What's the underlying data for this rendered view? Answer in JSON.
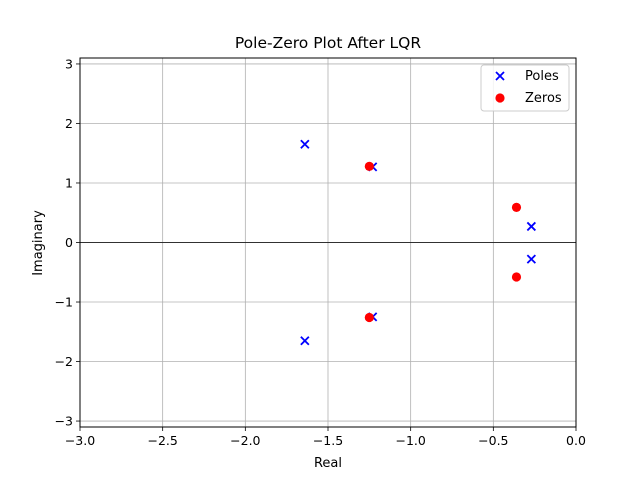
{
  "chart_data": {
    "type": "scatter",
    "title": "Pole-Zero Plot After LQR",
    "xlabel": "Real",
    "ylabel": "Imaginary",
    "xlim": [
      -3.0,
      0.0
    ],
    "ylim": [
      -3.1,
      3.1
    ],
    "grid": true,
    "legend_position": "top-right",
    "x_ticks": [
      -3.0,
      -2.5,
      -2.0,
      -1.5,
      -1.0,
      -0.5,
      0.0
    ],
    "x_tick_labels": [
      "−3.0",
      "−2.5",
      "−2.0",
      "−1.5",
      "−1.0",
      "−0.5",
      "0.0"
    ],
    "y_ticks": [
      -3,
      -2,
      -1,
      0,
      1,
      2,
      3
    ],
    "y_tick_labels": [
      "−3",
      "−2",
      "−1",
      "0",
      "1",
      "2",
      "3"
    ],
    "series": [
      {
        "name": "Poles",
        "marker": "x",
        "color": "#0000ff",
        "points": [
          {
            "x": -1.64,
            "y": 1.65
          },
          {
            "x": -1.64,
            "y": -1.65
          },
          {
            "x": -1.23,
            "y": 1.27
          },
          {
            "x": -1.23,
            "y": -1.25
          },
          {
            "x": -0.27,
            "y": 0.27
          },
          {
            "x": -0.27,
            "y": -0.28
          }
        ]
      },
      {
        "name": "Zeros",
        "marker": "o",
        "color": "#ff0000",
        "points": [
          {
            "x": -1.25,
            "y": 1.28
          },
          {
            "x": -1.25,
            "y": -1.26
          },
          {
            "x": -0.36,
            "y": 0.59
          },
          {
            "x": -0.36,
            "y": -0.58
          }
        ]
      }
    ]
  }
}
